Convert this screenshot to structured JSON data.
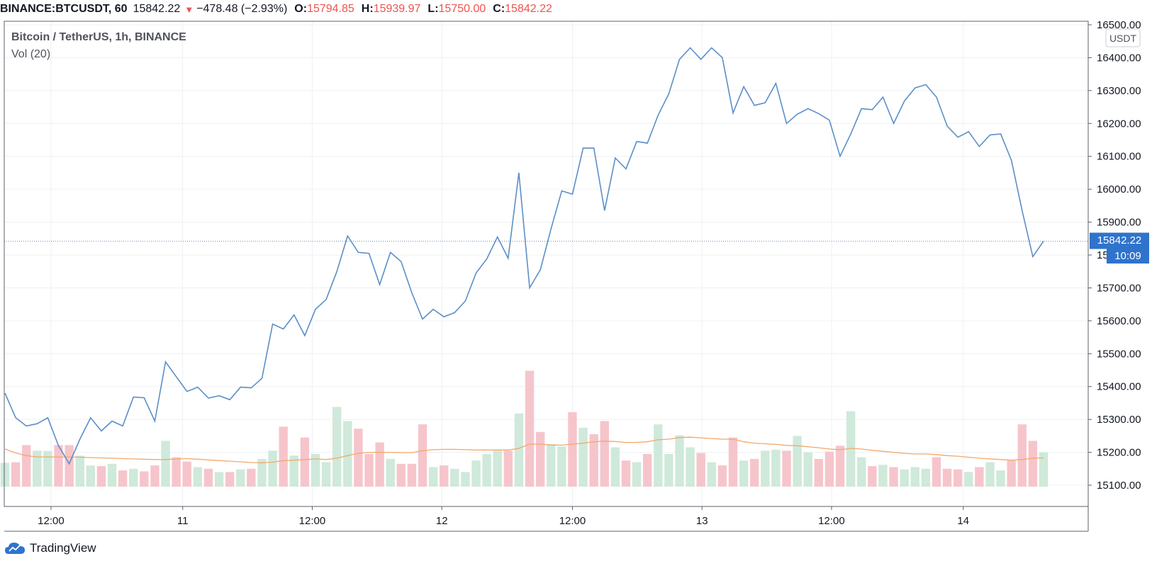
{
  "header": {
    "symbol": "BINANCE:BTCUSDT, 60",
    "last": "15842.22",
    "change": "−478.48 (−2.93%)",
    "open_label": "O:",
    "open": "15794.85",
    "high_label": "H:",
    "high": "15939.97",
    "low_label": "L:",
    "low": "15750.00",
    "close_label": "C:",
    "close": "15842.22"
  },
  "legend": {
    "title": "Bitcoin / TetherUS, 1h, BINANCE",
    "volume": "Vol (20)"
  },
  "currency_badge": "USDT",
  "price_label": "15842.22",
  "countdown_label": "10:09",
  "brand": {
    "name": "TradingView",
    "logo": "tradingview-cloud-logo"
  },
  "colors": {
    "line": "#5b8fc7",
    "volume_up": "#cfe9da",
    "volume_down": "#f6c5cb",
    "volume_ma": "#f2a86a",
    "price_label_bg": "#2f73cc",
    "last_price_line": "#6f8fb8",
    "grid": "#eef0f3"
  },
  "chart_data": {
    "type": "line",
    "series": [
      {
        "values": [
          15380,
          15305,
          15280,
          15287,
          15305,
          15220,
          15165,
          15240,
          15305,
          15265,
          15295,
          15280,
          15368,
          15366,
          15295,
          15475,
          15430,
          15385,
          15398,
          15365,
          15372,
          15360,
          15398,
          15396,
          15425,
          15590,
          15575,
          15618,
          15555,
          15635,
          15665,
          15750,
          15858,
          15808,
          15805,
          15710,
          15808,
          15780,
          15685,
          15605,
          15635,
          15612,
          15625,
          15660,
          15745,
          15788,
          15855,
          15790,
          16050,
          15700,
          15755,
          15880,
          15995,
          15985,
          16125,
          16125,
          15935,
          16095,
          16062,
          16145,
          16140,
          16225,
          16290,
          16395,
          16430,
          16395,
          16430,
          16400,
          16232,
          16312,
          16255,
          16263,
          16322,
          16200,
          16228,
          16245,
          16230,
          16210,
          16100,
          16168,
          16245,
          16242,
          16280,
          16200,
          16268,
          16308,
          16318,
          16280,
          16192,
          16158,
          16175,
          16130,
          16165,
          16168,
          16088,
          15935,
          15795,
          15842
        ]
      }
    ],
    "x_ticks": [
      {
        "label": "12:00",
        "index": 4.3
      },
      {
        "label": "11",
        "index": 16.6
      },
      {
        "label": "12:00",
        "index": 28.7
      },
      {
        "label": "12",
        "index": 40.8
      },
      {
        "label": "12:00",
        "index": 53.0
      },
      {
        "label": "13",
        "index": 65.1
      },
      {
        "label": "12:00",
        "index": 77.2
      },
      {
        "label": "14",
        "index": 89.5
      }
    ],
    "y_ticks": [
      15100,
      15200,
      15300,
      15400,
      15500,
      15600,
      15700,
      15800,
      15900,
      16000,
      16100,
      16200,
      16300,
      16400,
      16500
    ],
    "ylim": [
      15100,
      16500
    ],
    "grid": true,
    "volume": {
      "values": [
        15168,
        15170,
        15222,
        15205,
        15204,
        15222,
        15222,
        15190,
        15160,
        15158,
        15165,
        15145,
        15150,
        15142,
        15160,
        15235,
        15185,
        15172,
        15155,
        15150,
        15140,
        15140,
        15148,
        15150,
        15180,
        15205,
        15278,
        15190,
        15245,
        15195,
        15170,
        15338,
        15295,
        15272,
        15195,
        15230,
        15180,
        15165,
        15165,
        15285,
        15155,
        15160,
        15150,
        15140,
        15175,
        15195,
        15205,
        15205,
        15318,
        15448,
        15262,
        15225,
        15218,
        15322,
        15275,
        15255,
        15295,
        15215,
        15175,
        15170,
        15195,
        15285,
        15195,
        15252,
        15215,
        15198,
        15170,
        15160,
        15245,
        15175,
        15180,
        15205,
        15208,
        15205,
        15250,
        15200,
        15180,
        15202,
        15220,
        15325,
        15185,
        15158,
        15162,
        15155,
        15148,
        15155,
        15150,
        15185,
        15150,
        15148,
        15140,
        15155,
        15170,
        15145,
        15175,
        15285,
        15235,
        15200
      ],
      "direction": [
        "up",
        "down",
        "down",
        "up",
        "up",
        "down",
        "down",
        "up",
        "up",
        "down",
        "up",
        "down",
        "up",
        "down",
        "down",
        "up",
        "down",
        "down",
        "up",
        "down",
        "up",
        "down",
        "up",
        "down",
        "up",
        "up",
        "down",
        "up",
        "down",
        "up",
        "up",
        "up",
        "up",
        "down",
        "down",
        "down",
        "up",
        "down",
        "down",
        "down",
        "up",
        "down",
        "up",
        "up",
        "up",
        "up",
        "up",
        "down",
        "up",
        "down",
        "down",
        "up",
        "up",
        "down",
        "up",
        "down",
        "down",
        "up",
        "down",
        "up",
        "down",
        "up",
        "up",
        "up",
        "up",
        "down",
        "up",
        "down",
        "down",
        "up",
        "down",
        "up",
        "up",
        "down",
        "up",
        "up",
        "down",
        "down",
        "down",
        "up",
        "up",
        "down",
        "up",
        "down",
        "up",
        "up",
        "up",
        "down",
        "down",
        "down",
        "up",
        "down",
        "up",
        "up",
        "down",
        "down",
        "down",
        "up"
      ],
      "ma": [
        15210,
        15198,
        15190,
        15186,
        15186,
        15186,
        15186,
        15185,
        15184,
        15183,
        15182,
        15181,
        15180,
        15179,
        15178,
        15178,
        15180,
        15181,
        15179,
        15177,
        15175,
        15173,
        15171,
        15169,
        15168,
        15170,
        15175,
        15176,
        15178,
        15180,
        15178,
        15182,
        15190,
        15197,
        15200,
        15200,
        15200,
        15199,
        15199,
        15205,
        15208,
        15209,
        15209,
        15208,
        15207,
        15207,
        15207,
        15207,
        15212,
        15225,
        15225,
        15222,
        15222,
        15225,
        15228,
        15232,
        15234,
        15233,
        15230,
        15230,
        15232,
        15238,
        15240,
        15245,
        15246,
        15244,
        15242,
        15240,
        15240,
        15232,
        15228,
        15226,
        15224,
        15221,
        15220,
        15217,
        15214,
        15210,
        15208,
        15212,
        15210,
        15206,
        15203,
        15200,
        15197,
        15195,
        15195,
        15193,
        15190,
        15188,
        15185,
        15182,
        15180,
        15178,
        15176,
        15178,
        15182,
        15183
      ]
    }
  }
}
